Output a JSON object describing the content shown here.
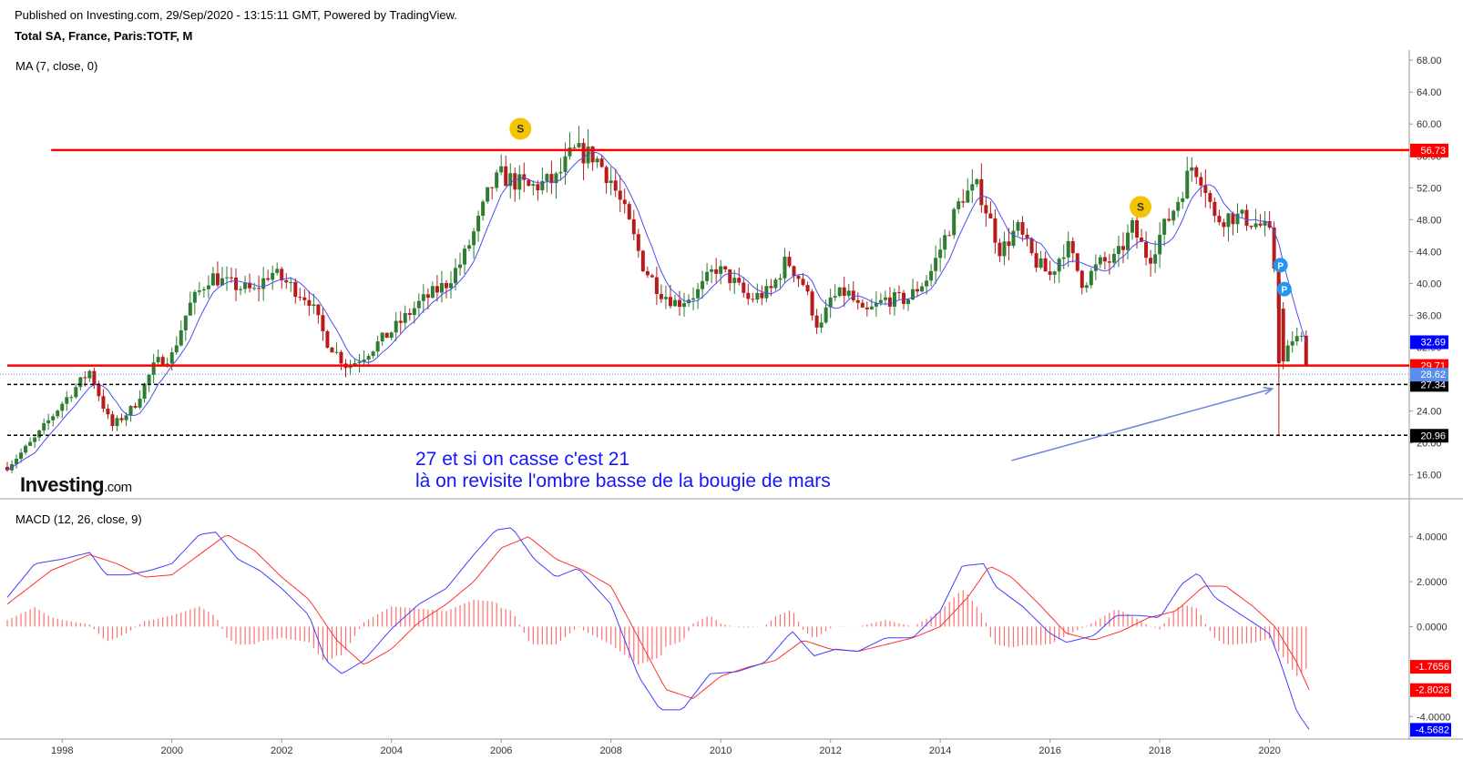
{
  "header": {
    "published": "Published on Investing.com, 29/Sep/2020 - 13:15:11 GMT, Powered by TradingView.",
    "symbol": "Total SA, France, Paris:TOTF, M"
  },
  "logo": {
    "brand": "Investing",
    "suffix": ".com"
  },
  "annotation": {
    "line1": "27 et si on casse c'est 21",
    "line2": "là on revisite l'ombre basse de la bougie de mars"
  },
  "colors": {
    "up": "#2e7d32",
    "down": "#b71c1c",
    "level": "#ff0000",
    "ma": "#4e4ef2",
    "macd": "#4040ff",
    "signal": "#ff3030",
    "hist": "#ff7070"
  },
  "chart_data": [
    {
      "type": "candlestick",
      "title": "MA (7, close, 0)",
      "x_ticks": [
        "1998",
        "2000",
        "2002",
        "2004",
        "2006",
        "2008",
        "2010",
        "2012",
        "2014",
        "2016",
        "2018",
        "2020"
      ],
      "y_ticks": [
        "68.00",
        "64.00",
        "60.00",
        "56.00",
        "52.00",
        "48.00",
        "44.00",
        "40.00",
        "36.00",
        "32.00",
        "28.00",
        "24.00",
        "20.00",
        "16.00"
      ],
      "ylim": [
        13.0,
        68.7
      ],
      "xlim": [
        1997.0,
        2021.8
      ],
      "price_path": [
        [
          1997.0,
          17.0
        ],
        [
          1997.5,
          20.5
        ],
        [
          1998.0,
          25.0
        ],
        [
          1998.5,
          29.0
        ],
        [
          1998.9,
          22.0
        ],
        [
          1999.3,
          24.5
        ],
        [
          1999.7,
          30.0
        ],
        [
          2000.0,
          31.0
        ],
        [
          2000.3,
          37.0
        ],
        [
          2000.7,
          41.0
        ],
        [
          2001.0,
          40.0
        ],
        [
          2001.5,
          39.0
        ],
        [
          2001.8,
          41.5
        ],
        [
          2002.2,
          39.5
        ],
        [
          2002.5,
          38.0
        ],
        [
          2002.8,
          33.0
        ],
        [
          2003.2,
          29.5
        ],
        [
          2003.5,
          31.0
        ],
        [
          2004.0,
          34.0
        ],
        [
          2004.5,
          37.5
        ],
        [
          2005.0,
          40.0
        ],
        [
          2005.3,
          43.0
        ],
        [
          2005.6,
          48.0
        ],
        [
          2005.8,
          52.0
        ],
        [
          2006.0,
          53.5
        ],
        [
          2006.5,
          52.0
        ],
        [
          2007.0,
          53.0
        ],
        [
          2007.3,
          56.5
        ],
        [
          2007.7,
          56.0
        ],
        [
          2008.0,
          53.0
        ],
        [
          2008.3,
          48.0
        ],
        [
          2008.6,
          42.0
        ],
        [
          2008.9,
          39.0
        ],
        [
          2009.2,
          37.5
        ],
        [
          2009.6,
          39.0
        ],
        [
          2009.9,
          42.0
        ],
        [
          2010.2,
          40.5
        ],
        [
          2010.5,
          38.0
        ],
        [
          2010.9,
          39.0
        ],
        [
          2011.2,
          43.0
        ],
        [
          2011.5,
          40.0
        ],
        [
          2011.8,
          34.0
        ],
        [
          2012.0,
          38.0
        ],
        [
          2012.3,
          39.0
        ],
        [
          2012.6,
          36.0
        ],
        [
          2013.0,
          38.0
        ],
        [
          2013.4,
          38.0
        ],
        [
          2013.8,
          41.0
        ],
        [
          2014.1,
          46.0
        ],
        [
          2014.4,
          51.0
        ],
        [
          2014.7,
          52.0
        ],
        [
          2014.9,
          48.0
        ],
        [
          2015.1,
          44.0
        ],
        [
          2015.4,
          47.0
        ],
        [
          2015.7,
          43.0
        ],
        [
          2016.0,
          41.0
        ],
        [
          2016.3,
          45.0
        ],
        [
          2016.6,
          40.0
        ],
        [
          2016.9,
          42.5
        ],
        [
          2017.2,
          43.0
        ],
        [
          2017.5,
          47.0
        ],
        [
          2017.8,
          43.0
        ],
        [
          2018.0,
          46.0
        ],
        [
          2018.3,
          50.0
        ],
        [
          2018.6,
          55.0
        ],
        [
          2018.8,
          53.0
        ],
        [
          2019.0,
          48.0
        ],
        [
          2019.3,
          48.5
        ],
        [
          2019.6,
          48.0
        ],
        [
          2019.9,
          47.0
        ],
        [
          2020.0,
          46.0
        ],
        [
          2020.15,
          39.0
        ],
        [
          2020.25,
          30.0
        ],
        [
          2020.4,
          33.0
        ],
        [
          2020.6,
          33.0
        ],
        [
          2020.72,
          28.3
        ]
      ],
      "special_candles": [
        {
          "x": 2020.17,
          "open": 40.5,
          "high": 40.8,
          "low": 20.96,
          "close": 30.0
        }
      ],
      "ma_label": "MA (7, close, 0)",
      "levels": [
        {
          "value": 56.73,
          "label": "56.73",
          "style": "solid",
          "color": "#ff0000",
          "start": 1997.8
        },
        {
          "value": 29.71,
          "label": "29.71",
          "style": "solid",
          "color": "#ff0000",
          "start": 1997.0
        },
        {
          "value": 27.34,
          "label": "27.34",
          "style": "dashed",
          "color": "#000000",
          "start": 1997.0
        },
        {
          "value": 20.96,
          "label": "20.96",
          "style": "dashed",
          "color": "#000000",
          "start": 1997.0
        }
      ],
      "price_labels": [
        {
          "value": 32.69,
          "label": "32.69",
          "bg": "#0000ff"
        },
        {
          "value": 28.62,
          "label": "28.62",
          "bg": "#5b8def"
        }
      ],
      "markers": [
        {
          "type": "S",
          "x": 2006.35,
          "y": 59.4,
          "color": "#f5c400"
        },
        {
          "type": "S",
          "x": 2017.65,
          "y": 49.6,
          "color": "#f5c400"
        },
        {
          "type": "P",
          "x": 2020.2,
          "y": 42.3,
          "color": "#2196f3"
        },
        {
          "type": "P",
          "x": 2020.27,
          "y": 39.3,
          "color": "#2196f3"
        }
      ],
      "arrow": {
        "from": [
          2015.3,
          17.8
        ],
        "to": [
          2020.05,
          26.8
        ],
        "color": "#6a83d8"
      }
    },
    {
      "type": "macd",
      "title": "MACD (12, 26, close, 9)",
      "y_ticks": [
        "4.0000",
        "2.0000",
        "0.0000",
        "-4.0000"
      ],
      "ylim": [
        -5.0,
        5.2
      ],
      "macd_path": [
        [
          1997.0,
          1.3
        ],
        [
          1997.5,
          2.8
        ],
        [
          1998.0,
          3.0
        ],
        [
          1998.5,
          3.3
        ],
        [
          1998.8,
          2.3
        ],
        [
          1999.2,
          2.3
        ],
        [
          1999.6,
          2.5
        ],
        [
          2000.0,
          2.8
        ],
        [
          2000.5,
          4.1
        ],
        [
          2000.8,
          4.2
        ],
        [
          2001.2,
          3.0
        ],
        [
          2001.6,
          2.5
        ],
        [
          2002.0,
          1.7
        ],
        [
          2002.5,
          0.5
        ],
        [
          2002.8,
          -1.5
        ],
        [
          2003.1,
          -2.1
        ],
        [
          2003.5,
          -1.5
        ],
        [
          2004.0,
          -0.1
        ],
        [
          2004.5,
          1.0
        ],
        [
          2005.0,
          1.7
        ],
        [
          2005.5,
          3.2
        ],
        [
          2005.9,
          4.3
        ],
        [
          2006.2,
          4.4
        ],
        [
          2006.6,
          3.0
        ],
        [
          2007.0,
          2.2
        ],
        [
          2007.4,
          2.6
        ],
        [
          2008.0,
          1.0
        ],
        [
          2008.5,
          -2.2
        ],
        [
          2008.9,
          -3.7
        ],
        [
          2009.3,
          -3.7
        ],
        [
          2009.8,
          -2.1
        ],
        [
          2010.3,
          -2.0
        ],
        [
          2010.8,
          -1.6
        ],
        [
          2011.3,
          -0.2
        ],
        [
          2011.7,
          -1.3
        ],
        [
          2012.1,
          -1.0
        ],
        [
          2012.5,
          -1.1
        ],
        [
          2013.0,
          -0.5
        ],
        [
          2013.5,
          -0.5
        ],
        [
          2014.0,
          0.7
        ],
        [
          2014.4,
          2.7
        ],
        [
          2014.8,
          2.8
        ],
        [
          2015.0,
          1.8
        ],
        [
          2015.5,
          0.9
        ],
        [
          2016.0,
          -0.3
        ],
        [
          2016.3,
          -0.7
        ],
        [
          2016.8,
          -0.4
        ],
        [
          2017.2,
          0.5
        ],
        [
          2017.6,
          0.5
        ],
        [
          2018.0,
          0.4
        ],
        [
          2018.4,
          1.9
        ],
        [
          2018.7,
          2.4
        ],
        [
          2019.0,
          1.3
        ],
        [
          2019.5,
          0.5
        ],
        [
          2020.0,
          -0.3
        ],
        [
          2020.2,
          -1.6
        ],
        [
          2020.5,
          -3.8
        ],
        [
          2020.72,
          -4.5682
        ]
      ],
      "signal_path": [
        [
          1997.0,
          1.0
        ],
        [
          1997.8,
          2.5
        ],
        [
          1998.5,
          3.2
        ],
        [
          1999.0,
          2.8
        ],
        [
          1999.5,
          2.2
        ],
        [
          2000.0,
          2.3
        ],
        [
          2000.5,
          3.2
        ],
        [
          2001.0,
          4.1
        ],
        [
          2001.5,
          3.4
        ],
        [
          2002.0,
          2.2
        ],
        [
          2002.5,
          1.2
        ],
        [
          2003.0,
          -0.6
        ],
        [
          2003.5,
          -1.7
        ],
        [
          2004.0,
          -1.0
        ],
        [
          2004.5,
          0.2
        ],
        [
          2005.0,
          1.0
        ],
        [
          2005.5,
          2.0
        ],
        [
          2006.0,
          3.5
        ],
        [
          2006.5,
          4.0
        ],
        [
          2007.0,
          3.0
        ],
        [
          2007.5,
          2.5
        ],
        [
          2008.0,
          1.8
        ],
        [
          2008.5,
          -0.5
        ],
        [
          2009.0,
          -2.8
        ],
        [
          2009.5,
          -3.2
        ],
        [
          2010.0,
          -2.2
        ],
        [
          2010.5,
          -1.8
        ],
        [
          2011.0,
          -1.5
        ],
        [
          2011.5,
          -0.6
        ],
        [
          2012.0,
          -1.0
        ],
        [
          2012.5,
          -1.1
        ],
        [
          2013.0,
          -0.8
        ],
        [
          2013.5,
          -0.5
        ],
        [
          2014.0,
          0.0
        ],
        [
          2014.5,
          1.3
        ],
        [
          2014.9,
          2.7
        ],
        [
          2015.3,
          2.2
        ],
        [
          2015.8,
          1.0
        ],
        [
          2016.3,
          -0.3
        ],
        [
          2016.8,
          -0.6
        ],
        [
          2017.3,
          -0.2
        ],
        [
          2017.8,
          0.4
        ],
        [
          2018.3,
          0.7
        ],
        [
          2018.8,
          1.8
        ],
        [
          2019.2,
          1.8
        ],
        [
          2019.7,
          0.9
        ],
        [
          2020.1,
          0.0
        ],
        [
          2020.5,
          -1.6
        ],
        [
          2020.72,
          -2.8026
        ]
      ],
      "hist_last": -1.7656,
      "price_labels": [
        {
          "value": -1.7656,
          "label": "-1.7656",
          "bg": "#ff0000"
        },
        {
          "value": -2.8026,
          "label": "-2.8026",
          "bg": "#ff0000"
        },
        {
          "value": -4.5682,
          "label": "-4.5682",
          "bg": "#0000ff"
        }
      ]
    }
  ]
}
